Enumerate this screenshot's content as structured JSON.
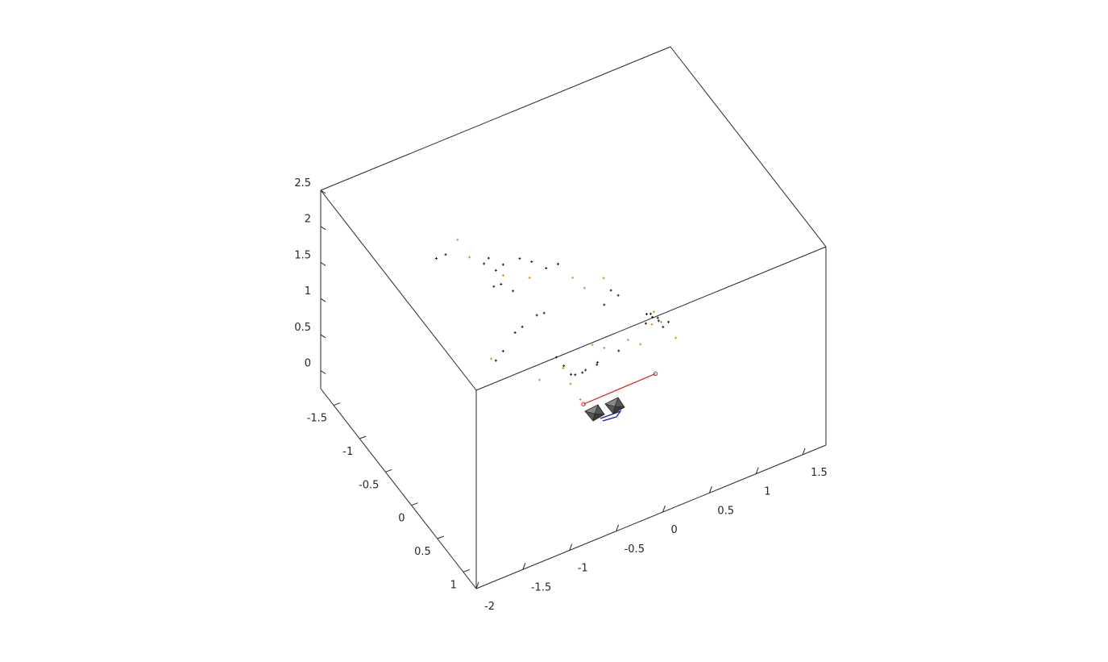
{
  "chart_data": {
    "type": "scatter",
    "title": "",
    "xlabel": "",
    "ylabel": "",
    "zlabel": "",
    "grid": false,
    "box": true,
    "xlim": [
      -2,
      1.75
    ],
    "ylim": [
      -1.75,
      1.25
    ],
    "zlim": [
      -0.25,
      2.5
    ],
    "x_ticks": [
      "-2",
      "-1.5",
      "-1",
      "-0.5",
      "0",
      "0.5",
      "1",
      "1.5"
    ],
    "y_ticks": [
      "-1.5",
      "-1",
      "-0.5",
      "0",
      "0.5",
      "1"
    ],
    "z_ticks": [
      "0",
      "0.5",
      "1",
      "1.5",
      "2",
      "2.5"
    ],
    "colors": {
      "axis": "#262626",
      "point_dark": "#1a1a1a",
      "point_orange": "#d98a1c",
      "trajectory": "#e02020",
      "camera": "#555555",
      "camera_link": "#1a1aa8"
    },
    "series": [
      {
        "marker": "+",
        "color": "#1a1a1a",
        "points": [
          [
            -1.4,
            -0.6,
            2.3
          ],
          [
            -1.3,
            -0.6,
            2.3
          ],
          [
            -1.0,
            -0.4,
            2.2
          ],
          [
            -0.95,
            -0.4,
            2.25
          ],
          [
            -0.9,
            -0.35,
            2.1
          ],
          [
            -0.85,
            -0.3,
            2.2
          ],
          [
            -0.7,
            -0.25,
            2.25
          ],
          [
            -0.6,
            -0.2,
            2.2
          ],
          [
            -0.5,
            -0.1,
            2.15
          ],
          [
            -0.4,
            -0.05,
            2.2
          ],
          [
            -0.95,
            -0.3,
            1.95
          ],
          [
            -0.9,
            -0.25,
            2.0
          ],
          [
            -0.8,
            -0.2,
            1.9
          ],
          [
            -0.6,
            -0.1,
            1.55
          ],
          [
            -0.55,
            -0.05,
            1.6
          ],
          [
            -0.7,
            -0.2,
            1.35
          ],
          [
            -0.75,
            -0.25,
            1.25
          ],
          [
            -0.85,
            -0.3,
            1.0
          ],
          [
            -0.9,
            -0.35,
            0.85
          ],
          [
            -0.5,
            0.1,
            1.1
          ],
          [
            -0.45,
            0.15,
            1.0
          ],
          [
            -0.4,
            0.2,
            0.9
          ],
          [
            -0.3,
            0.3,
            1.0
          ],
          [
            -0.2,
            0.35,
            1.1
          ],
          [
            -0.1,
            0.3,
            1.8
          ],
          [
            0.0,
            0.25,
            1.9
          ],
          [
            0.05,
            0.3,
            1.85
          ],
          [
            0.3,
            0.4,
            1.55
          ],
          [
            0.35,
            0.42,
            1.5
          ],
          [
            0.4,
            0.45,
            1.45
          ],
          [
            0.42,
            0.5,
            1.4
          ],
          [
            0.38,
            0.47,
            1.52
          ],
          [
            0.32,
            0.44,
            1.58
          ],
          [
            0.45,
            0.55,
            1.5
          ],
          [
            0.28,
            0.42,
            1.45
          ],
          [
            -0.3,
            0.1,
            0.75
          ],
          [
            -0.25,
            0.15,
            0.8
          ],
          [
            0.0,
            0.4,
            1.2
          ],
          [
            -0.15,
            0.25,
            0.95
          ]
        ]
      },
      {
        "marker": "+",
        "color": "#d98a1c",
        "points": [
          [
            -1.2,
            -0.55,
            2.5
          ],
          [
            -1.1,
            -0.5,
            2.25
          ],
          [
            -0.85,
            -0.3,
            2.05
          ],
          [
            -0.65,
            -0.15,
            2.05
          ],
          [
            -0.3,
            0.05,
            2.05
          ],
          [
            -0.05,
            0.2,
            2.05
          ],
          [
            -0.2,
            0.1,
            1.9
          ],
          [
            0.35,
            0.45,
            1.6
          ],
          [
            0.4,
            0.5,
            1.48
          ],
          [
            -0.95,
            -0.35,
            0.9
          ],
          [
            -0.4,
            0.05,
            0.85
          ],
          [
            -0.6,
            -0.05,
            0.7
          ],
          [
            -0.1,
            0.3,
            1.2
          ],
          [
            0.1,
            0.4,
            1.3
          ],
          [
            -0.35,
            0.1,
            0.65
          ],
          [
            0.15,
            0.55,
            1.35
          ],
          [
            -0.2,
            0.25,
            1.25
          ],
          [
            -0.3,
            0.2,
            0.5
          ],
          [
            0.3,
            0.5,
            1.5
          ],
          [
            0.5,
            0.6,
            1.3
          ]
        ]
      }
    ],
    "trajectory": {
      "color": "#e02020",
      "points": [
        [
          -0.35,
          0.35,
          0.6
        ],
        [
          0.2,
          0.75,
          1.1
        ]
      ]
    },
    "cameras": {
      "count": 2,
      "link_color": "#1a1aa8"
    }
  }
}
